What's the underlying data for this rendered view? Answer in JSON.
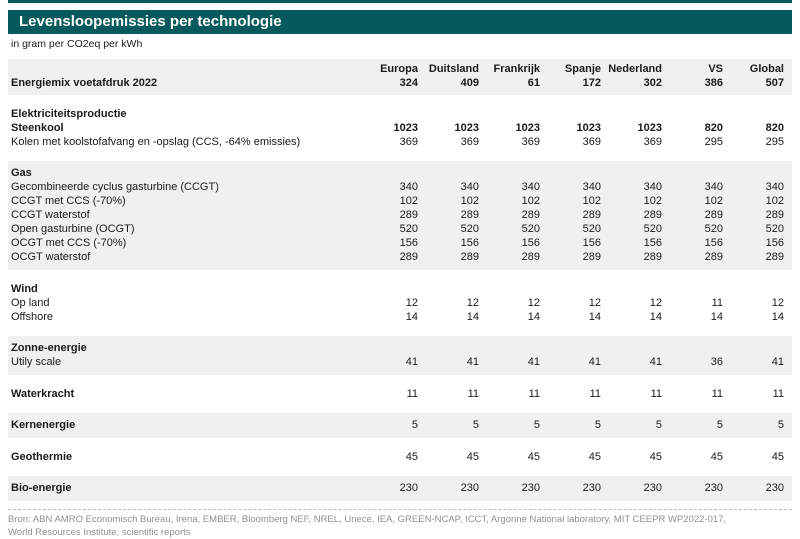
{
  "page": {
    "title": "Levensloopemissies per technologie",
    "subtitle": "in gram per CO2eq per kWh",
    "accent_color": "#065a5c",
    "shaded_band_color": "#f0f0f0"
  },
  "chart_data": {
    "type": "table",
    "title": "Levensloopemissies per technologie",
    "unit_label": "in gram per CO2eq per kWh",
    "columns": [
      "Europa",
      "Duitsland",
      "Frankrijk",
      "Spanje",
      "Nederland",
      "VS",
      "Global"
    ],
    "energiemix": {
      "label": "Energiemix voetafdruk 2022",
      "values": [
        324,
        409,
        61,
        172,
        302,
        386,
        507
      ]
    },
    "sections": [
      {
        "title": "Elektriciteitsproductie",
        "shaded": false,
        "title_values": null,
        "rows": [
          {
            "label": "Steenkool",
            "bold": true,
            "values": [
              1023,
              1023,
              1023,
              1023,
              1023,
              820,
              820
            ]
          },
          {
            "label": "Kolen met koolstofafvang en -opslag (CCS, -64% emissies)",
            "bold": false,
            "values": [
              369,
              369,
              369,
              369,
              369,
              295,
              295
            ]
          }
        ]
      },
      {
        "title": "Gas",
        "shaded": true,
        "title_values": null,
        "rows": [
          {
            "label": "Gecombineerde cyclus gasturbine (CCGT)",
            "bold": false,
            "values": [
              340,
              340,
              340,
              340,
              340,
              340,
              340
            ]
          },
          {
            "label": "CCGT met CCS (-70%)",
            "bold": false,
            "values": [
              102,
              102,
              102,
              102,
              102,
              102,
              102
            ]
          },
          {
            "label": "CCGT waterstof",
            "bold": false,
            "values": [
              289,
              289,
              289,
              289,
              289,
              289,
              289
            ]
          },
          {
            "label": "Open gasturbine (OCGT)",
            "bold": false,
            "values": [
              520,
              520,
              520,
              520,
              520,
              520,
              520
            ]
          },
          {
            "label": "OCGT met CCS (-70%)",
            "bold": false,
            "values": [
              156,
              156,
              156,
              156,
              156,
              156,
              156
            ]
          },
          {
            "label": "OCGT waterstof",
            "bold": false,
            "values": [
              289,
              289,
              289,
              289,
              289,
              289,
              289
            ]
          }
        ]
      },
      {
        "title": "Wind",
        "shaded": false,
        "title_values": null,
        "rows": [
          {
            "label": "Op land",
            "bold": false,
            "values": [
              12,
              12,
              12,
              12,
              12,
              11,
              12
            ]
          },
          {
            "label": "Offshore",
            "bold": false,
            "values": [
              14,
              14,
              14,
              14,
              14,
              14,
              14
            ]
          }
        ]
      },
      {
        "title": "Zonne-energie",
        "shaded": true,
        "title_values": null,
        "rows": [
          {
            "label": "Utily scale",
            "bold": false,
            "values": [
              41,
              41,
              41,
              41,
              41,
              36,
              41
            ]
          }
        ]
      },
      {
        "title": "Waterkracht",
        "shaded": false,
        "title_values": [
          11,
          11,
          11,
          11,
          11,
          11,
          11
        ],
        "rows": []
      },
      {
        "title": "Kernenergie",
        "shaded": true,
        "title_values": [
          5,
          5,
          5,
          5,
          5,
          5,
          5
        ],
        "rows": []
      },
      {
        "title": "Geothermie",
        "shaded": false,
        "title_values": [
          45,
          45,
          45,
          45,
          45,
          45,
          45
        ],
        "rows": []
      },
      {
        "title": "Bio-energie",
        "shaded": true,
        "title_values": [
          230,
          230,
          230,
          230,
          230,
          230,
          230
        ],
        "rows": []
      }
    ]
  },
  "footer": {
    "line1": "Bron: ABN AMRO Economisch Bureau, Irena, EMBER, Bloomberg NEF, NREL, Unece, IEA,  GREEN-NCAP, ICCT, Argonne National laboratory, MIT CEEPR WP2022-017,",
    "line2": "World Resources Institute, scientific reports"
  }
}
